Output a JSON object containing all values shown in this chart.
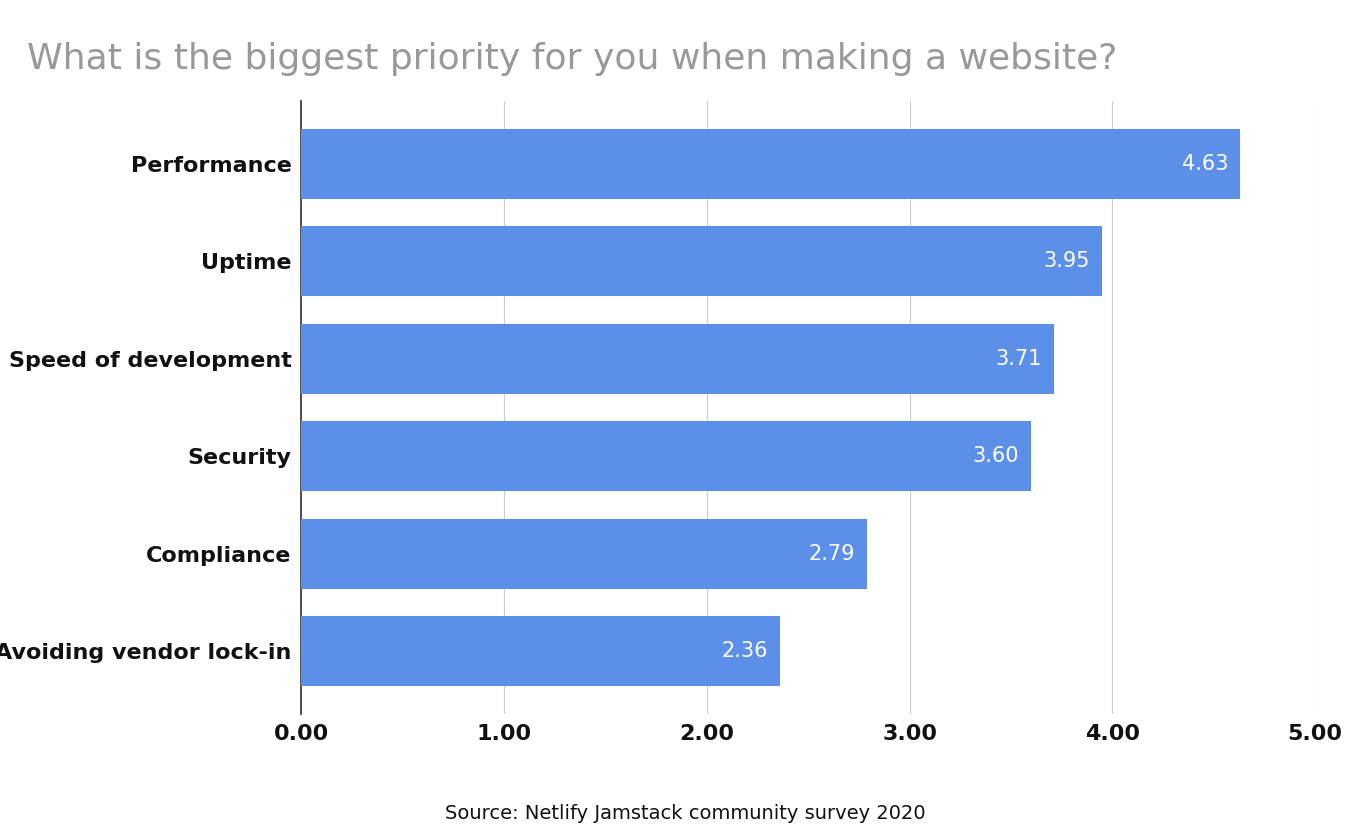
{
  "title": "What is the biggest priority for you when making a website?",
  "categories": [
    "Avoiding vendor lock-in",
    "Compliance",
    "Security",
    "Speed of development",
    "Uptime",
    "Performance"
  ],
  "values": [
    2.36,
    2.79,
    3.6,
    3.71,
    3.95,
    4.63
  ],
  "bar_color": "#5B8FE8",
  "label_color": "#ffffff",
  "title_color": "#999999",
  "ytick_color": "#111111",
  "xtick_color": "#111111",
  "source_text": "Source: Netlify Jamstack community survey 2020",
  "xlim": [
    0,
    5.0
  ],
  "xticks": [
    0.0,
    1.0,
    2.0,
    3.0,
    4.0,
    5.0
  ],
  "xtick_labels": [
    "0.00",
    "1.00",
    "2.00",
    "3.00",
    "4.00",
    "5.00"
  ],
  "title_fontsize": 26,
  "label_fontsize": 15,
  "ytick_fontsize": 16,
  "xtick_fontsize": 16,
  "source_fontsize": 14,
  "bar_height": 0.72,
  "background_color": "#ffffff",
  "grid_color": "#cccccc",
  "spine_color": "#333333"
}
